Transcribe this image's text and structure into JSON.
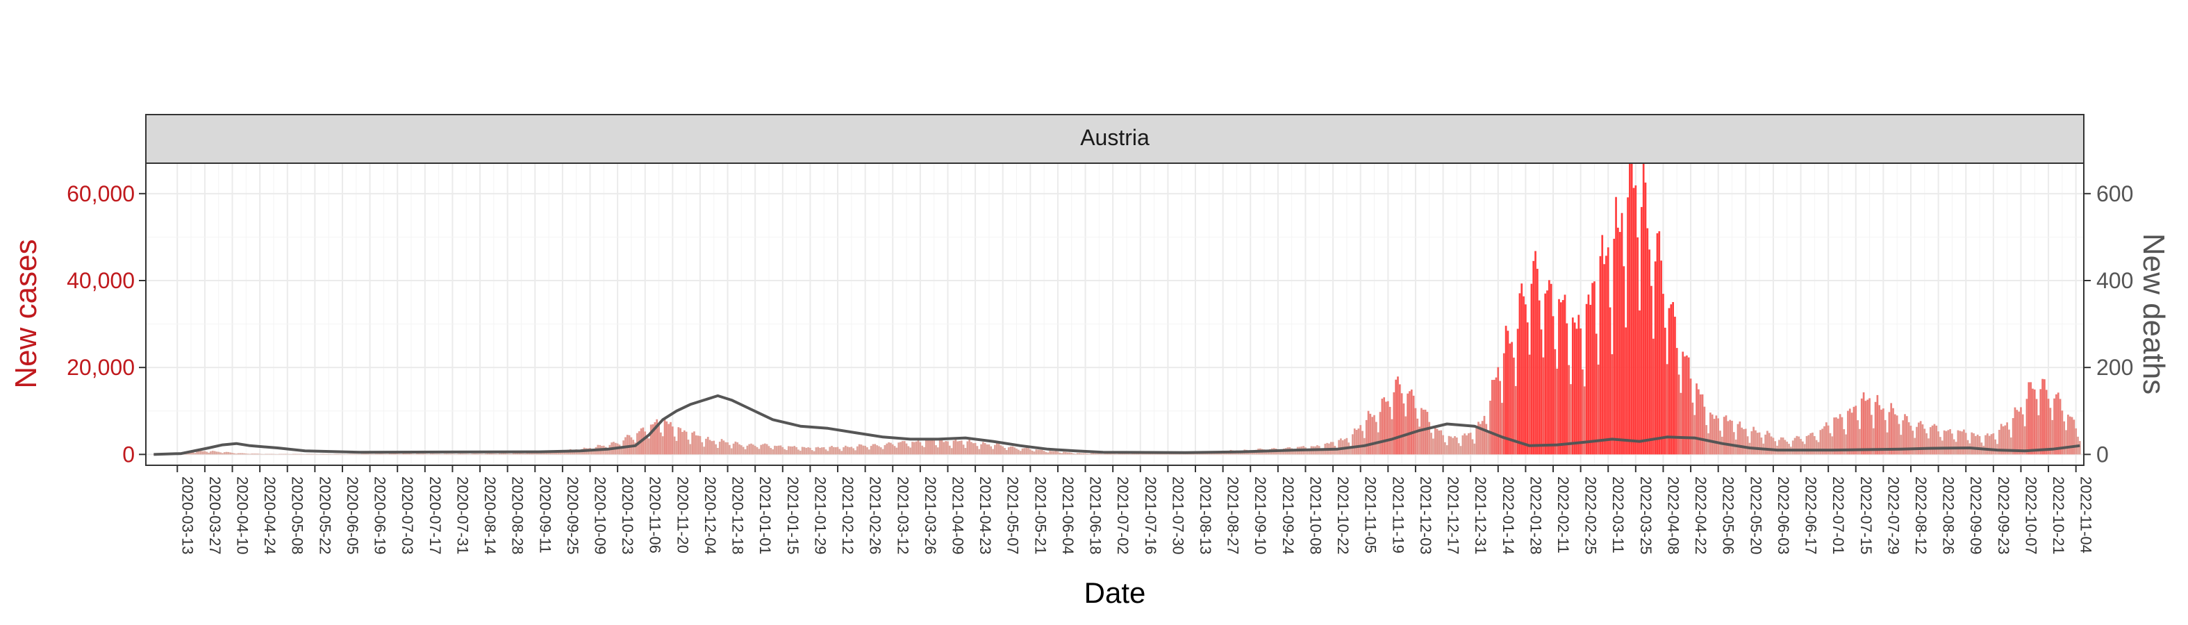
{
  "chart_data": {
    "type": "bar",
    "facet_label": "Austria",
    "xlabel": "Date",
    "ylabel_left": "New cases",
    "ylabel_right": "New deaths",
    "y_left_ticks": [
      0,
      20000,
      40000,
      60000
    ],
    "y_left_tick_labels": [
      "0",
      "20,000",
      "40,000",
      "60,000"
    ],
    "y_right_ticks": [
      0,
      200,
      400,
      600
    ],
    "y_right_tick_labels": [
      "0",
      "200",
      "400",
      "600"
    ],
    "y_left_lim": [
      -2500,
      67000
    ],
    "y_right_lim": [
      -25,
      670
    ],
    "x_range": [
      "2020-02-26",
      "2022-11-08"
    ],
    "x_tick_labels": [
      "2020-03-13",
      "2020-03-27",
      "2020-04-10",
      "2020-04-24",
      "2020-05-08",
      "2020-05-22",
      "2020-06-05",
      "2020-06-19",
      "2020-07-03",
      "2020-07-17",
      "2020-07-31",
      "2020-08-14",
      "2020-08-28",
      "2020-09-11",
      "2020-09-25",
      "2020-10-09",
      "2020-10-23",
      "2020-11-06",
      "2020-11-20",
      "2020-12-04",
      "2020-12-18",
      "2021-01-01",
      "2021-01-15",
      "2021-01-29",
      "2021-02-12",
      "2021-02-26",
      "2021-03-12",
      "2021-03-26",
      "2021-04-09",
      "2021-04-23",
      "2021-05-07",
      "2021-05-21",
      "2021-06-04",
      "2021-06-18",
      "2021-07-02",
      "2021-07-16",
      "2021-07-30",
      "2021-08-13",
      "2021-08-27",
      "2021-09-10",
      "2021-09-24",
      "2021-10-08",
      "2021-10-22",
      "2021-11-05",
      "2021-11-19",
      "2021-12-03",
      "2021-12-17",
      "2021-12-31",
      "2022-01-14",
      "2022-01-28",
      "2022-02-11",
      "2022-02-25",
      "2022-03-11",
      "2022-03-25",
      "2022-04-08",
      "2022-04-22",
      "2022-05-06",
      "2022-05-20",
      "2022-06-03",
      "2022-06-17",
      "2022-07-01",
      "2022-07-15",
      "2022-07-29",
      "2022-08-12",
      "2022-08-26",
      "2022-09-09",
      "2022-09-23",
      "2022-10-07",
      "2022-10-21",
      "2022-11-04"
    ],
    "series": [
      {
        "name": "New cases",
        "kind": "bars",
        "axis": "left",
        "x": [
          "2020-03-01",
          "2020-03-15",
          "2020-03-29",
          "2020-04-12",
          "2020-04-26",
          "2020-05-10",
          "2020-05-24",
          "2020-06-07",
          "2020-06-21",
          "2020-07-05",
          "2020-07-19",
          "2020-08-02",
          "2020-08-16",
          "2020-08-30",
          "2020-09-13",
          "2020-09-27",
          "2020-10-11",
          "2020-10-25",
          "2020-11-01",
          "2020-11-08",
          "2020-11-15",
          "2020-11-22",
          "2020-11-29",
          "2020-12-06",
          "2020-12-13",
          "2020-12-20",
          "2020-12-27",
          "2021-01-10",
          "2021-01-24",
          "2021-02-07",
          "2021-02-21",
          "2021-03-07",
          "2021-03-21",
          "2021-04-04",
          "2021-04-18",
          "2021-05-02",
          "2021-05-16",
          "2021-05-30",
          "2021-06-13",
          "2021-06-27",
          "2021-07-11",
          "2021-07-25",
          "2021-08-08",
          "2021-08-22",
          "2021-09-05",
          "2021-09-19",
          "2021-10-03",
          "2021-10-17",
          "2021-10-24",
          "2021-10-31",
          "2021-11-07",
          "2021-11-14",
          "2021-11-21",
          "2021-11-28",
          "2021-12-05",
          "2021-12-12",
          "2021-12-19",
          "2021-12-26",
          "2022-01-02",
          "2022-01-09",
          "2022-01-16",
          "2022-01-23",
          "2022-01-30",
          "2022-02-06",
          "2022-02-13",
          "2022-02-20",
          "2022-02-27",
          "2022-03-06",
          "2022-03-13",
          "2022-03-20",
          "2022-03-27",
          "2022-04-03",
          "2022-04-10",
          "2022-04-17",
          "2022-04-24",
          "2022-05-01",
          "2022-05-15",
          "2022-05-29",
          "2022-06-12",
          "2022-06-26",
          "2022-07-03",
          "2022-07-10",
          "2022-07-17",
          "2022-07-24",
          "2022-07-31",
          "2022-08-07",
          "2022-08-21",
          "2022-09-04",
          "2022-09-18",
          "2022-09-25",
          "2022-10-02",
          "2022-10-09",
          "2022-10-16",
          "2022-10-23",
          "2022-10-30",
          "2022-11-06"
        ],
        "values": [
          100,
          500,
          800,
          300,
          100,
          100,
          100,
          100,
          150,
          200,
          150,
          150,
          200,
          250,
          500,
          900,
          1500,
          3000,
          4500,
          6500,
          7000,
          6000,
          4500,
          3500,
          3000,
          2500,
          2200,
          2000,
          1500,
          1500,
          1800,
          2200,
          2800,
          3000,
          2800,
          2200,
          1400,
          800,
          300,
          200,
          200,
          300,
          400,
          600,
          900,
          1200,
          1500,
          2000,
          2800,
          4000,
          7000,
          10000,
          14000,
          15000,
          11000,
          6000,
          4000,
          3500,
          5000,
          10000,
          22000,
          30000,
          38000,
          39000,
          33000,
          28000,
          30000,
          38000,
          48000,
          55000,
          62000,
          48000,
          34000,
          25000,
          15000,
          9000,
          6500,
          4500,
          3000,
          5000,
          7000,
          9000,
          11000,
          12000,
          10000,
          8000,
          6000,
          5000,
          4000,
          4500,
          8000,
          12000,
          16000,
          14000,
          9000,
          5500
        ]
      },
      {
        "name": "New deaths",
        "kind": "line",
        "axis": "right",
        "x": [
          "2020-03-01",
          "2020-03-15",
          "2020-03-29",
          "2020-04-05",
          "2020-04-12",
          "2020-04-19",
          "2020-05-03",
          "2020-05-17",
          "2020-06-14",
          "2020-09-13",
          "2020-10-04",
          "2020-10-18",
          "2020-11-01",
          "2020-11-08",
          "2020-11-15",
          "2020-11-22",
          "2020-11-29",
          "2020-12-06",
          "2020-12-13",
          "2020-12-20",
          "2020-12-27",
          "2021-01-03",
          "2021-01-10",
          "2021-01-24",
          "2021-02-07",
          "2021-02-21",
          "2021-03-07",
          "2021-03-21",
          "2021-04-04",
          "2021-04-18",
          "2021-05-02",
          "2021-05-16",
          "2021-05-30",
          "2021-06-13",
          "2021-06-27",
          "2021-08-08",
          "2021-09-05",
          "2021-10-03",
          "2021-10-24",
          "2021-11-07",
          "2021-11-21",
          "2021-12-05",
          "2021-12-19",
          "2022-01-02",
          "2022-01-16",
          "2022-01-30",
          "2022-02-13",
          "2022-02-27",
          "2022-03-13",
          "2022-03-27",
          "2022-04-10",
          "2022-04-24",
          "2022-05-08",
          "2022-05-22",
          "2022-06-05",
          "2022-07-03",
          "2022-08-07",
          "2022-08-21",
          "2022-09-11",
          "2022-09-25",
          "2022-10-09",
          "2022-10-23",
          "2022-11-06"
        ],
        "values": [
          0,
          2,
          15,
          22,
          25,
          20,
          15,
          8,
          5,
          6,
          8,
          12,
          20,
          45,
          80,
          100,
          115,
          125,
          135,
          125,
          110,
          95,
          80,
          65,
          60,
          50,
          40,
          35,
          35,
          38,
          30,
          20,
          12,
          8,
          5,
          4,
          6,
          10,
          12,
          20,
          35,
          55,
          70,
          65,
          40,
          20,
          22,
          28,
          35,
          30,
          40,
          38,
          25,
          15,
          10,
          10,
          12,
          14,
          15,
          10,
          8,
          12,
          20
        ]
      }
    ]
  }
}
